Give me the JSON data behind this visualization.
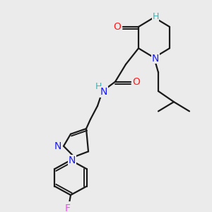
{
  "bg_color": "#ebebeb",
  "bond_color": "#1a1a1a",
  "bond_width": 1.6,
  "fig_width": 3.0,
  "fig_height": 3.0,
  "dpi": 100,
  "colors": {
    "N": "#1a1aff",
    "O": "#ff2020",
    "F": "#ff44ff",
    "H": "#40b0b0",
    "C": "#1a1a1a"
  }
}
